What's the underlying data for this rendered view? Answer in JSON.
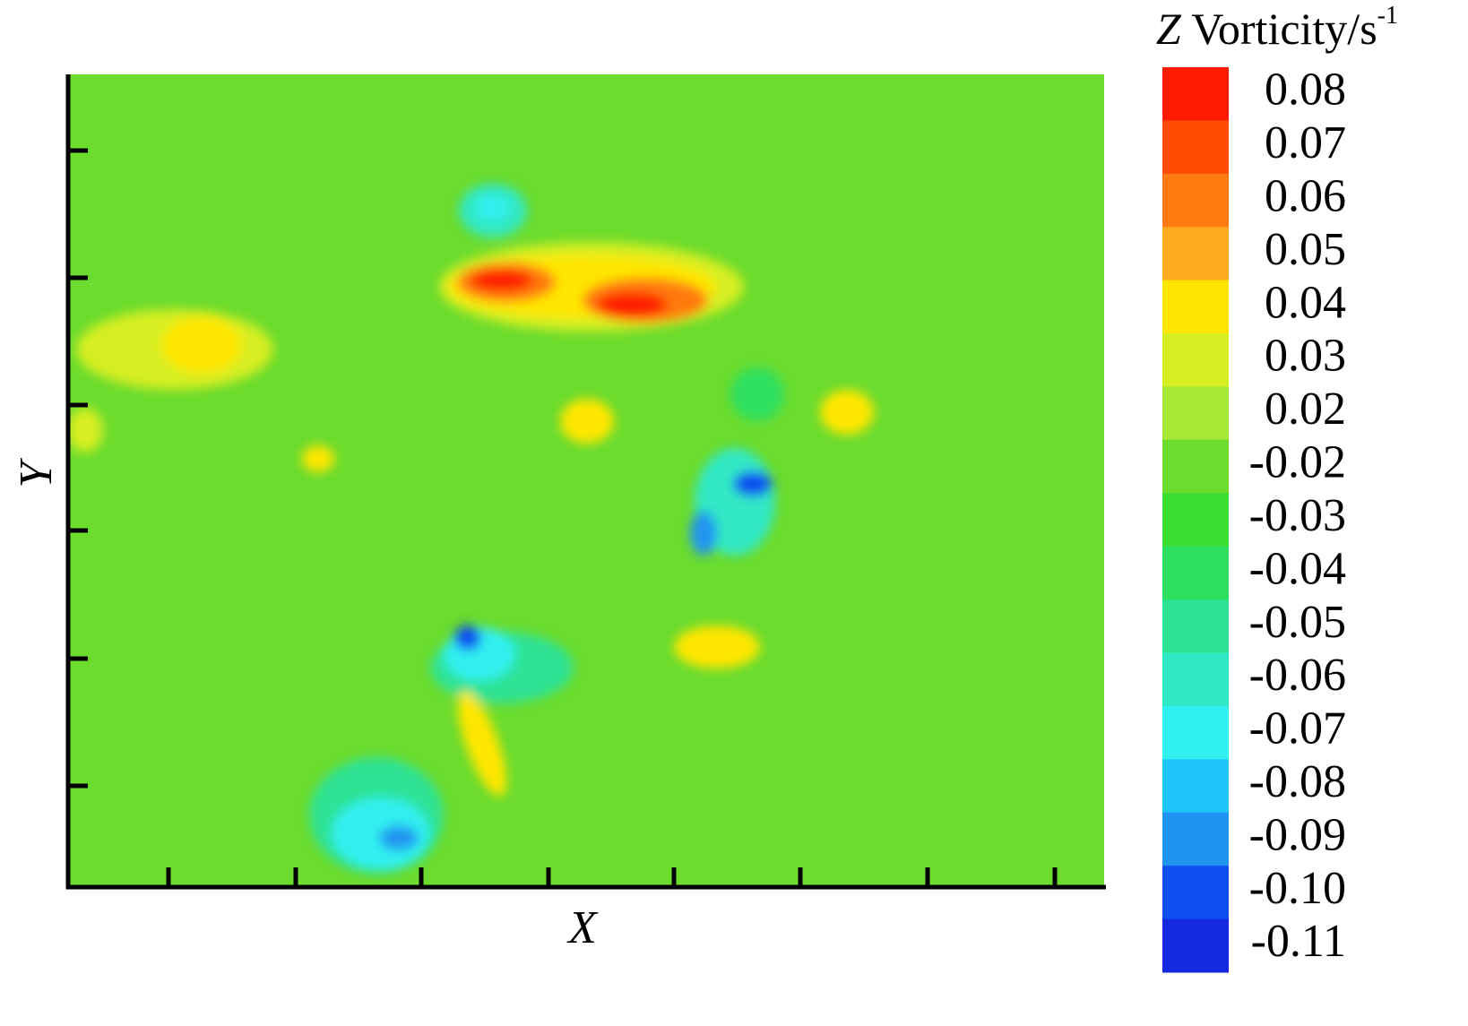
{
  "chart_data": {
    "type": "contour",
    "colorbar_title": {
      "symbol": "Z",
      "text": " Vorticity/s",
      "superscript": "-1"
    },
    "x_label": "X",
    "y_label": "Y",
    "levels": [
      0.08,
      0.07,
      0.06,
      0.05,
      0.04,
      0.03,
      0.02,
      -0.02,
      -0.03,
      -0.04,
      -0.05,
      -0.06,
      -0.07,
      -0.08,
      -0.09,
      {
        "value": -0.1,
        "label": "-0.10"
      },
      -0.11
    ],
    "colors": [
      "#ff1a00",
      "#ff4a00",
      "#ff7a10",
      "#ffaa20",
      "#ffe600",
      "#d6ee22",
      "#a6e836",
      "#6cdc2e",
      "#3ade30",
      "#2ee060",
      "#2ee294",
      "#30e8c4",
      "#30f0f0",
      "#20c4f8",
      "#2094f0",
      "#1050f0",
      "#1428e0"
    ]
  }
}
